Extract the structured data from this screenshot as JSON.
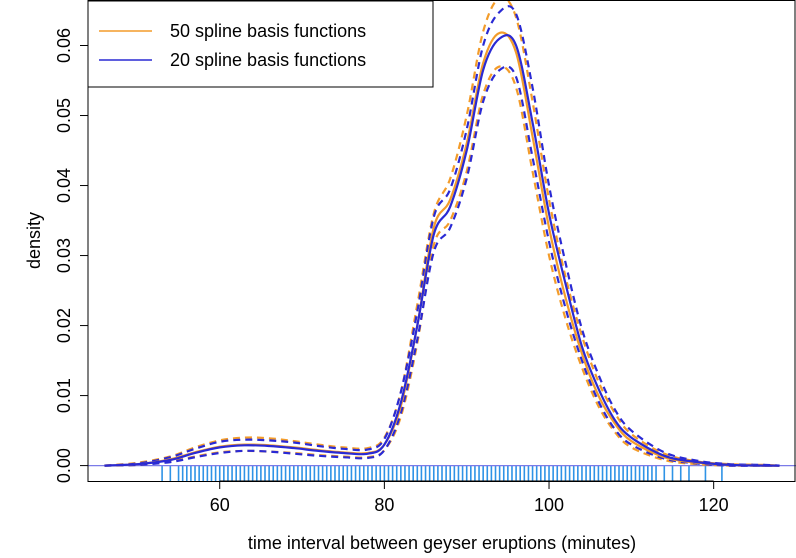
{
  "chart_data": {
    "type": "line",
    "title": "",
    "xlabel": "time interval between geyser eruptions (minutes)",
    "ylabel": "density",
    "xlim": [
      44,
      130
    ],
    "ylim": [
      -0.0022,
      0.0665
    ],
    "x_ticks": [
      60,
      80,
      100,
      120
    ],
    "x_tick_labels": [
      "60",
      "80",
      "100",
      "120"
    ],
    "y_ticks": [
      0.0,
      0.01,
      0.02,
      0.03,
      0.04,
      0.05,
      0.06
    ],
    "y_tick_labels": [
      "0.00",
      "0.01",
      "0.02",
      "0.03",
      "0.04",
      "0.05",
      "0.06"
    ],
    "legend": {
      "position": "top-left",
      "entries": [
        {
          "label": "50 spline basis functions",
          "color": "#F39C2A"
        },
        {
          "label": "20 spline basis functions",
          "color": "#2A2AD4"
        }
      ]
    },
    "zero_line_color": "#7B7BE8",
    "rug_color": "#2E93E6",
    "x": [
      46,
      50,
      54,
      57,
      60,
      63,
      66,
      69,
      72,
      75,
      78,
      80,
      82,
      84,
      86,
      88,
      90,
      92,
      94,
      96,
      98,
      100,
      102,
      104,
      106,
      108,
      110,
      114,
      118,
      122,
      126,
      128
    ],
    "series": [
      {
        "name": "50 spline basis functions",
        "color": "#F39C2A",
        "line": "solid",
        "values": [
          0.0,
          0.0002,
          0.0009,
          0.0019,
          0.0027,
          0.003,
          0.0029,
          0.0026,
          0.0022,
          0.0019,
          0.0018,
          0.003,
          0.0085,
          0.02,
          0.034,
          0.038,
          0.046,
          0.0575,
          0.0618,
          0.059,
          0.047,
          0.034,
          0.024,
          0.016,
          0.01,
          0.006,
          0.0035,
          0.0012,
          0.0004,
          0.0001,
          0.0,
          0.0
        ]
      },
      {
        "name": "20 spline basis functions",
        "color": "#2A2AD4",
        "line": "solid",
        "values": [
          0.0,
          0.0002,
          0.0008,
          0.0018,
          0.0026,
          0.0029,
          0.0028,
          0.0025,
          0.0021,
          0.0018,
          0.0017,
          0.003,
          0.009,
          0.02,
          0.033,
          0.037,
          0.045,
          0.0565,
          0.061,
          0.06,
          0.049,
          0.036,
          0.026,
          0.017,
          0.011,
          0.0065,
          0.004,
          0.0014,
          0.0005,
          0.0001,
          0.0,
          0.0
        ]
      },
      {
        "name": "",
        "color": "#F39C2A",
        "line": "dashed",
        "values": [
          0.0,
          0.0004,
          0.0013,
          0.0026,
          0.0036,
          0.004,
          0.0039,
          0.0035,
          0.003,
          0.0026,
          0.0025,
          0.004,
          0.0105,
          0.023,
          0.036,
          0.041,
          0.05,
          0.062,
          0.0668,
          0.064,
          0.052,
          0.038,
          0.027,
          0.0185,
          0.012,
          0.0075,
          0.0045,
          0.0017,
          0.0006,
          0.0002,
          0.0001,
          0.0
        ]
      },
      {
        "name": "",
        "color": "#F39C2A",
        "line": "dashed",
        "values": [
          0.0,
          0.0001,
          0.0006,
          0.0013,
          0.0019,
          0.0021,
          0.002,
          0.0018,
          0.0015,
          0.0013,
          0.0012,
          0.0022,
          0.007,
          0.0175,
          0.0315,
          0.035,
          0.042,
          0.053,
          0.057,
          0.054,
          0.042,
          0.03,
          0.021,
          0.014,
          0.0085,
          0.0048,
          0.0026,
          0.0008,
          0.0002,
          0.0,
          0.0,
          0.0
        ]
      },
      {
        "name": "",
        "color": "#2A2AD4",
        "line": "dashed",
        "values": [
          0.0,
          0.0003,
          0.0012,
          0.0024,
          0.0034,
          0.0037,
          0.0036,
          0.0033,
          0.0028,
          0.0024,
          0.0023,
          0.0038,
          0.0105,
          0.022,
          0.0355,
          0.0395,
          0.048,
          0.06,
          0.0648,
          0.0645,
          0.054,
          0.04,
          0.029,
          0.0195,
          0.013,
          0.008,
          0.005,
          0.0019,
          0.0007,
          0.0002,
          0.0001,
          0.0
        ]
      },
      {
        "name": "",
        "color": "#2A2AD4",
        "line": "dashed",
        "values": [
          0.0,
          0.0001,
          0.0005,
          0.0012,
          0.0018,
          0.0021,
          0.002,
          0.0017,
          0.0014,
          0.0012,
          0.0011,
          0.0022,
          0.0075,
          0.018,
          0.0305,
          0.034,
          0.041,
          0.052,
          0.0565,
          0.0555,
          0.044,
          0.032,
          0.0225,
          0.015,
          0.0092,
          0.0052,
          0.003,
          0.001,
          0.0003,
          0.0,
          0.0,
          0.0
        ]
      }
    ],
    "rug": [
      53,
      54,
      55,
      55.5,
      56,
      56.5,
      57,
      57.5,
      58,
      58.5,
      59,
      59.5,
      60,
      60.5,
      61,
      61.5,
      62,
      62.5,
      63,
      63.5,
      64,
      64.5,
      65,
      65.5,
      66,
      66.5,
      67,
      67.5,
      68,
      68.5,
      69,
      69.5,
      70,
      70.5,
      71,
      71.5,
      72,
      72.5,
      73,
      73.5,
      74,
      74.5,
      75,
      75.5,
      76,
      76.5,
      77,
      77.5,
      78,
      78.5,
      79,
      79.5,
      80,
      80.5,
      81,
      81.5,
      82,
      82.5,
      83,
      83.5,
      84,
      84.5,
      85,
      85.5,
      86,
      86.5,
      87,
      87.5,
      88,
      88.5,
      89,
      89.5,
      90,
      90.5,
      91,
      91.5,
      92,
      92.5,
      93,
      93.5,
      94,
      94.5,
      95,
      95.5,
      96,
      96.5,
      97,
      97.5,
      98,
      98.5,
      99,
      99.5,
      100,
      100.5,
      101,
      101.5,
      102,
      102.5,
      103,
      103.5,
      104,
      104.5,
      105,
      105.5,
      106,
      106.5,
      107,
      107.5,
      108,
      108.5,
      109,
      109.5,
      110,
      110.5,
      111,
      111.5,
      112,
      112.5,
      113,
      114,
      115,
      116,
      117,
      119,
      121
    ]
  }
}
